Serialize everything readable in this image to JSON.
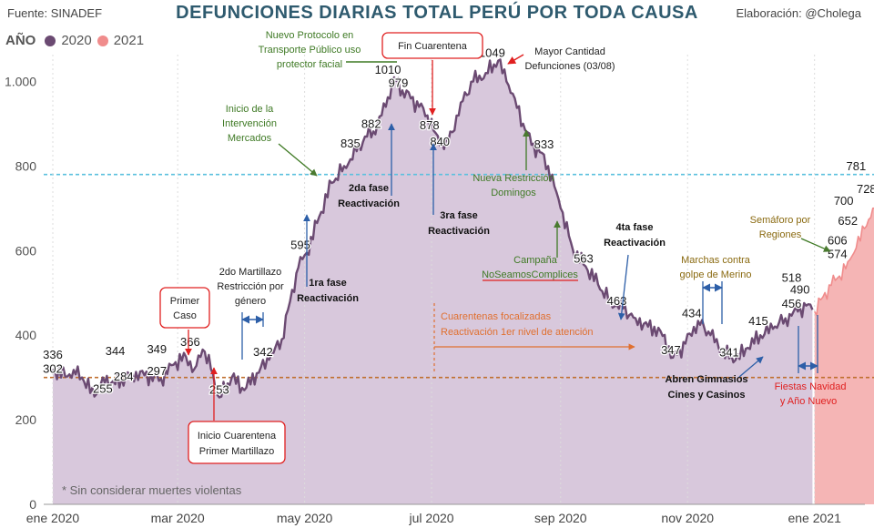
{
  "header": {
    "source": "Fuente: SINADEF",
    "title": "DEFUNCIONES DIARIAS TOTAL PERÚ POR TODA CAUSA",
    "author": "Elaboración: @Cholega"
  },
  "legend": {
    "title": "AÑO",
    "items": [
      {
        "label": "2020",
        "color": "#6b4a72"
      },
      {
        "label": "2021",
        "color": "#f08c8c"
      }
    ]
  },
  "footnote": "* Sin considerar muertes violentas",
  "chart_data": {
    "type": "area",
    "title": "DEFUNCIONES DIARIAS TOTAL PERÚ POR TODA CAUSA",
    "xlabel": "",
    "ylabel": "",
    "ylim": [
      0,
      1200
    ],
    "y_ticks": [
      0,
      200,
      400,
      600,
      800,
      1000
    ],
    "y_tick_labels": [
      "0",
      "200",
      "400",
      "600",
      "800",
      "1.000"
    ],
    "x_ticks": [
      {
        "day": 0,
        "label": "ene 2020"
      },
      {
        "day": 60,
        "label": "mar 2020"
      },
      {
        "day": 121,
        "label": "may 2020"
      },
      {
        "day": 182,
        "label": "jul 2020"
      },
      {
        "day": 244,
        "label": "sep 2020"
      },
      {
        "day": 305,
        "label": "nov 2020"
      },
      {
        "day": 366,
        "label": "ene 2021"
      }
    ],
    "grid": false,
    "reference_lines": [
      {
        "value": 780,
        "color": "#5bc0de"
      },
      {
        "value": 300,
        "color": "#c07030"
      }
    ],
    "series": [
      {
        "name": "2020",
        "color": "#6b4a72",
        "fill": "#d8c8dc",
        "points": [
          [
            0,
            320
          ],
          [
            6,
            302
          ],
          [
            10,
            318
          ],
          [
            14,
            300
          ],
          [
            20,
            255
          ],
          [
            24,
            300
          ],
          [
            30,
            284
          ],
          [
            38,
            310
          ],
          [
            44,
            305
          ],
          [
            52,
            297
          ],
          [
            58,
            330
          ],
          [
            64,
            349
          ],
          [
            68,
            320
          ],
          [
            72,
            366
          ],
          [
            76,
            320
          ],
          [
            80,
            253
          ],
          [
            86,
            300
          ],
          [
            92,
            270
          ],
          [
            98,
            310
          ],
          [
            104,
            342
          ],
          [
            110,
            390
          ],
          [
            114,
            480
          ],
          [
            118,
            560
          ],
          [
            122,
            595
          ],
          [
            128,
            680
          ],
          [
            134,
            760
          ],
          [
            140,
            800
          ],
          [
            146,
            835
          ],
          [
            150,
            870
          ],
          [
            154,
            882
          ],
          [
            160,
            940
          ],
          [
            164,
            1010
          ],
          [
            168,
            979
          ],
          [
            172,
            960
          ],
          [
            176,
            940
          ],
          [
            180,
            920
          ],
          [
            184,
            878
          ],
          [
            188,
            840
          ],
          [
            192,
            880
          ],
          [
            196,
            950
          ],
          [
            202,
            1000
          ],
          [
            208,
            1020
          ],
          [
            214,
            1049
          ],
          [
            218,
            1000
          ],
          [
            222,
            960
          ],
          [
            226,
            900
          ],
          [
            230,
            850
          ],
          [
            234,
            833
          ],
          [
            238,
            800
          ],
          [
            244,
            700
          ],
          [
            250,
            600
          ],
          [
            256,
            563
          ],
          [
            262,
            520
          ],
          [
            268,
            480
          ],
          [
            274,
            463
          ],
          [
            280,
            440
          ],
          [
            286,
            420
          ],
          [
            292,
            410
          ],
          [
            298,
            347
          ],
          [
            304,
            380
          ],
          [
            310,
            434
          ],
          [
            316,
            400
          ],
          [
            322,
            360
          ],
          [
            328,
            341
          ],
          [
            334,
            370
          ],
          [
            340,
            400
          ],
          [
            346,
            415
          ],
          [
            352,
            440
          ],
          [
            358,
            456
          ],
          [
            362,
            470
          ],
          [
            365,
            460
          ]
        ]
      },
      {
        "name": "2021",
        "color": "#f08c8c",
        "fill": "#f5b5b5",
        "points": [
          [
            366,
            456
          ],
          [
            370,
            490
          ],
          [
            374,
            518
          ],
          [
            378,
            540
          ],
          [
            382,
            574
          ],
          [
            386,
            606
          ],
          [
            390,
            652
          ],
          [
            394,
            700
          ],
          [
            398,
            728
          ],
          [
            402,
            781
          ]
        ]
      }
    ],
    "point_labels": [
      {
        "day": 0,
        "value": 336,
        "label": "336"
      },
      {
        "day": 0,
        "value": 302,
        "label": "302"
      },
      {
        "day": 24,
        "value": 255,
        "label": "255"
      },
      {
        "day": 34,
        "value": 284,
        "label": "284"
      },
      {
        "day": 30,
        "value": 344,
        "label": "344"
      },
      {
        "day": 50,
        "value": 297,
        "label": "297"
      },
      {
        "day": 50,
        "value": 349,
        "label": "349"
      },
      {
        "day": 66,
        "value": 366,
        "label": "366"
      },
      {
        "day": 80,
        "value": 253,
        "label": "253"
      },
      {
        "day": 101,
        "value": 342,
        "label": "342"
      },
      {
        "day": 119,
        "value": 595,
        "label": "595"
      },
      {
        "day": 143,
        "value": 835,
        "label": "835"
      },
      {
        "day": 153,
        "value": 882,
        "label": "882"
      },
      {
        "day": 161,
        "value": 1010,
        "label": "1010"
      },
      {
        "day": 166,
        "value": 979,
        "label": "979"
      },
      {
        "day": 181,
        "value": 878,
        "label": "878"
      },
      {
        "day": 186,
        "value": 840,
        "label": "840"
      },
      {
        "day": 211,
        "value": 1049,
        "label": "1049"
      },
      {
        "day": 236,
        "value": 833,
        "label": "833"
      },
      {
        "day": 255,
        "value": 563,
        "label": "563"
      },
      {
        "day": 271,
        "value": 463,
        "label": "463"
      },
      {
        "day": 297,
        "value": 347,
        "label": "347"
      },
      {
        "day": 307,
        "value": 434,
        "label": "434"
      },
      {
        "day": 325,
        "value": 341,
        "label": "341"
      },
      {
        "day": 339,
        "value": 415,
        "label": "415"
      },
      {
        "day": 355,
        "value": 456,
        "label": "456"
      },
      {
        "day": 359,
        "value": 490,
        "label": "490"
      },
      {
        "day": 355,
        "value": 518,
        "label": "518"
      },
      {
        "day": 377,
        "value": 574,
        "label": "574"
      },
      {
        "day": 377,
        "value": 606,
        "label": "606"
      },
      {
        "day": 382,
        "value": 652,
        "label": "652"
      },
      {
        "day": 380,
        "value": 700,
        "label": "700"
      },
      {
        "day": 391,
        "value": 728,
        "label": "728"
      },
      {
        "day": 386,
        "value": 781,
        "label": "781"
      }
    ],
    "annotations": {
      "primer_caso": [
        "Primer",
        "Caso"
      ],
      "inicio_cuarentena": [
        "Inicio Cuarentena",
        "Primer Martillazo"
      ],
      "martillazo2": [
        "2do Martillazo",
        "Restricción por",
        "género"
      ],
      "fase1": [
        "1ra fase",
        "Reactivación"
      ],
      "protocolo": [
        "Nuevo Protocolo en",
        "Transporte Público uso",
        "protector facial"
      ],
      "mercados": [
        "Inicio de la",
        "Intervención",
        "Mercados"
      ],
      "fase2": [
        "2da fase",
        "Reactivación"
      ],
      "fin_cuarentena": [
        "Fin Cuarentena"
      ],
      "fase3": [
        "3ra fase",
        "Reactivación"
      ],
      "mayor_cantidad": [
        "Mayor Cantidad",
        "Defunciones (03/08)"
      ],
      "restriccion_domingos": [
        "Nueva Restricción",
        "Domingos"
      ],
      "campana": [
        "Campaña",
        "NoSeamosComplices"
      ],
      "focalizadas": [
        "Cuarentenas focalizadas",
        "Reactivación 1er nivel de atención"
      ],
      "fase4": [
        "4ta fase",
        "Reactivación"
      ],
      "merino": [
        "Marchas contra",
        "golpe de Merino"
      ],
      "gimnasios": [
        "Abren Gimnasios",
        "Cines y Casinos"
      ],
      "semaforo": [
        "Semáforo por",
        "Regiones"
      ],
      "fiestas": [
        "Fiestas Navidad",
        "y Año Nuevo"
      ]
    }
  }
}
